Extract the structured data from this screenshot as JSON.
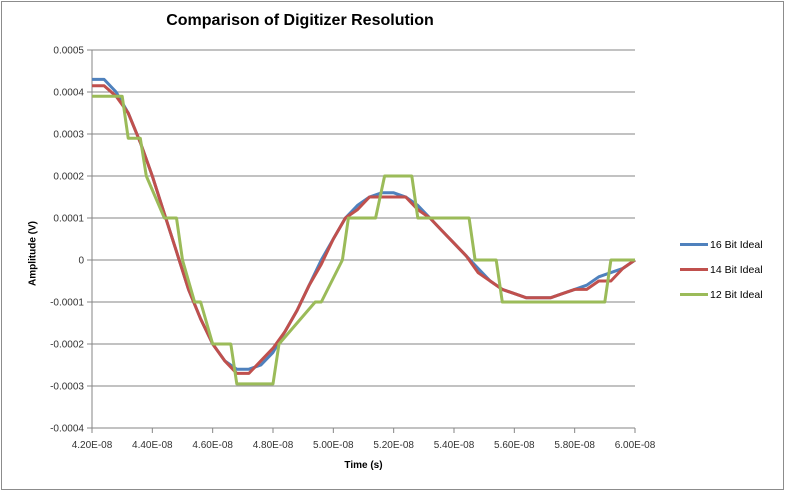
{
  "chart_data": {
    "type": "line",
    "title": "Comparison of Digitizer Resolution",
    "xlabel": "Time (s)",
    "ylabel": "Amplitude (V)",
    "x_unit_note": "x values in units of 1E-08 s",
    "xlim": [
      4.2,
      6.0
    ],
    "ylim": [
      -0.0004,
      0.0005
    ],
    "x_ticks": [
      "4.20E-08",
      "4.40E-08",
      "4.60E-08",
      "4.80E-08",
      "5.00E-08",
      "5.20E-08",
      "5.40E-08",
      "5.60E-08",
      "5.80E-08",
      "6.00E-08"
    ],
    "y_ticks": [
      "0.0005",
      "0.0004",
      "0.0003",
      "0.0002",
      "0.0001",
      "0",
      "-0.0001",
      "-0.0002",
      "-0.0003",
      "-0.0004"
    ],
    "grid": "horizontal",
    "legend_position": "right",
    "series": [
      {
        "name": "16 Bit Ideal",
        "color": "#4f81bd",
        "x": [
          4.2,
          4.24,
          4.28,
          4.32,
          4.36,
          4.4,
          4.44,
          4.48,
          4.52,
          4.56,
          4.6,
          4.64,
          4.68,
          4.72,
          4.76,
          4.8,
          4.84,
          4.88,
          4.92,
          4.96,
          5.0,
          5.04,
          5.08,
          5.12,
          5.16,
          5.2,
          5.24,
          5.28,
          5.32,
          5.36,
          5.4,
          5.44,
          5.48,
          5.52,
          5.56,
          5.6,
          5.64,
          5.68,
          5.72,
          5.76,
          5.8,
          5.84,
          5.88,
          5.92,
          5.96,
          6.0
        ],
        "y": [
          0.00043,
          0.00043,
          0.0004,
          0.00035,
          0.00028,
          0.0002,
          0.00011,
          2e-05,
          -7e-05,
          -0.00014,
          -0.0002,
          -0.00024,
          -0.00026,
          -0.00026,
          -0.00025,
          -0.00022,
          -0.00017,
          -0.00012,
          -6e-05,
          0.0,
          5e-05,
          0.0001,
          0.00013,
          0.00015,
          0.00016,
          0.00016,
          0.00015,
          0.00013,
          0.0001,
          7e-05,
          4e-05,
          1e-05,
          -2e-05,
          -5e-05,
          -7e-05,
          -8e-05,
          -9e-05,
          -9e-05,
          -9e-05,
          -8e-05,
          -7e-05,
          -6e-05,
          -4e-05,
          -3e-05,
          -2e-05,
          0.0
        ]
      },
      {
        "name": "14 Bit Ideal",
        "color": "#c0504d",
        "x": [
          4.2,
          4.24,
          4.28,
          4.32,
          4.36,
          4.4,
          4.44,
          4.48,
          4.52,
          4.56,
          4.6,
          4.64,
          4.68,
          4.72,
          4.76,
          4.8,
          4.84,
          4.88,
          4.92,
          4.96,
          5.0,
          5.04,
          5.08,
          5.12,
          5.16,
          5.2,
          5.24,
          5.28,
          5.32,
          5.36,
          5.4,
          5.44,
          5.48,
          5.52,
          5.56,
          5.6,
          5.64,
          5.68,
          5.72,
          5.76,
          5.8,
          5.84,
          5.88,
          5.92,
          5.96,
          6.0
        ],
        "y": [
          0.000415,
          0.000415,
          0.00039,
          0.00035,
          0.00028,
          0.0002,
          0.00011,
          2e-05,
          -7e-05,
          -0.00014,
          -0.0002,
          -0.00024,
          -0.00027,
          -0.00027,
          -0.00024,
          -0.00021,
          -0.00017,
          -0.00012,
          -6e-05,
          -1e-05,
          5e-05,
          0.0001,
          0.00012,
          0.00015,
          0.00015,
          0.00015,
          0.00015,
          0.00012,
          0.0001,
          7e-05,
          4e-05,
          1e-05,
          -3e-05,
          -5e-05,
          -7e-05,
          -8e-05,
          -9e-05,
          -9e-05,
          -9e-05,
          -8e-05,
          -7e-05,
          -7e-05,
          -5e-05,
          -5e-05,
          -2e-05,
          0.0
        ]
      },
      {
        "name": "12 Bit Ideal",
        "color": "#9bbb59",
        "x": [
          4.2,
          4.3,
          4.32,
          4.36,
          4.38,
          4.44,
          4.46,
          4.48,
          4.5,
          4.54,
          4.56,
          4.6,
          4.62,
          4.66,
          4.68,
          4.8,
          4.82,
          4.94,
          4.96,
          5.03,
          5.05,
          5.14,
          5.17,
          5.26,
          5.28,
          5.45,
          5.47,
          5.54,
          5.56,
          5.82,
          5.84,
          5.9,
          5.92,
          6.0
        ],
        "y": [
          0.00039,
          0.00039,
          0.00029,
          0.00029,
          0.0002,
          0.0001,
          0.0001,
          0.0001,
          0.0,
          -0.0001,
          -0.0001,
          -0.0002,
          -0.0002,
          -0.0002,
          -0.000295,
          -0.000295,
          -0.0002,
          -0.0001,
          -0.0001,
          0.0,
          0.0001,
          0.0001,
          0.0002,
          0.0002,
          0.0001,
          0.0001,
          0.0,
          0.0,
          -0.0001,
          -0.0001,
          -0.0001,
          -0.0001,
          0.0,
          0.0
        ]
      }
    ]
  },
  "legend": {
    "items": [
      {
        "label": "16 Bit Ideal",
        "color": "#4f81bd"
      },
      {
        "label": "14 Bit Ideal",
        "color": "#c0504d"
      },
      {
        "label": "12 Bit Ideal",
        "color": "#9bbb59"
      }
    ]
  }
}
